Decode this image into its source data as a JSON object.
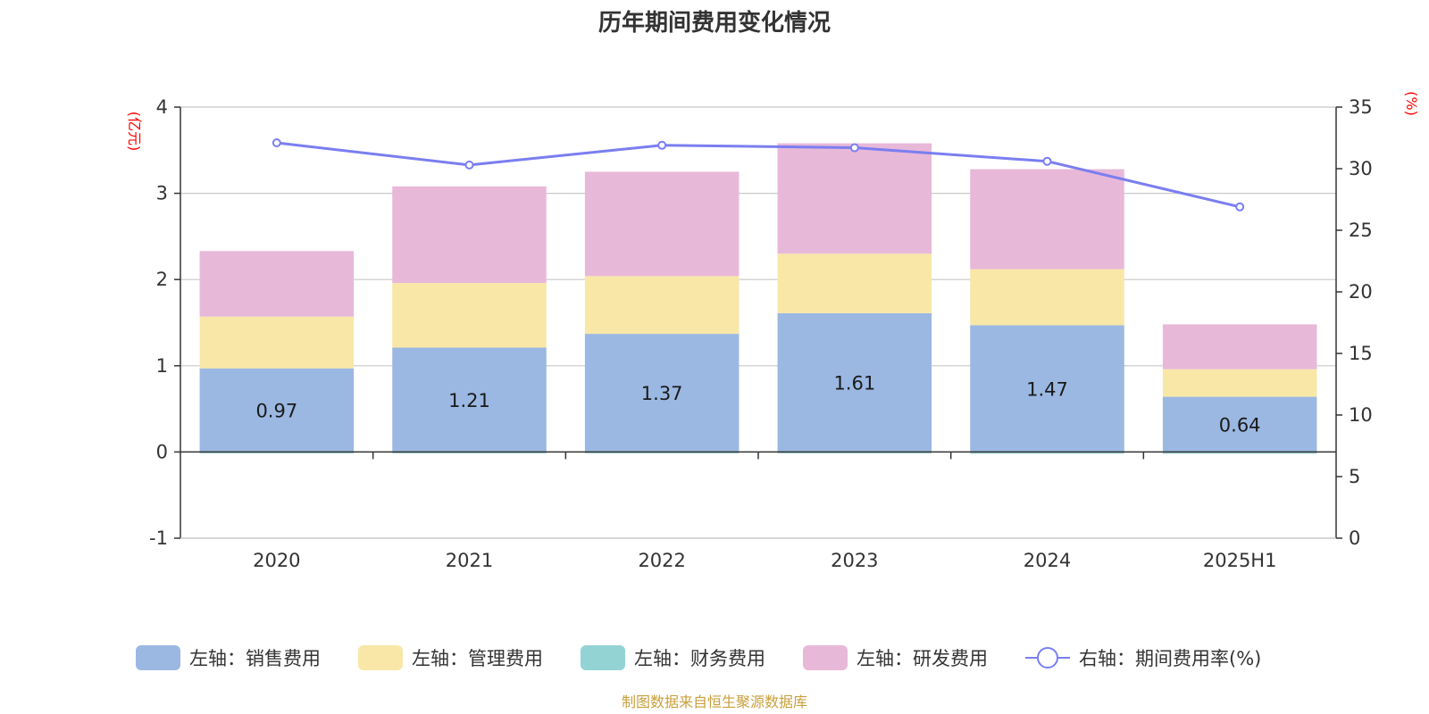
{
  "chart_data": {
    "type": "bar",
    "title": "历年期间费用变化情况",
    "categories": [
      "2020",
      "2021",
      "2022",
      "2023",
      "2024",
      "2025H1"
    ],
    "left_axis": {
      "unit": "(亿元)",
      "ylim": [
        -1,
        4
      ],
      "ticks": [
        "-1",
        "0",
        "1",
        "2",
        "3",
        "4"
      ]
    },
    "right_axis": {
      "unit": "(%)",
      "ylim": [
        0,
        35
      ],
      "ticks": [
        "0",
        "5",
        "10",
        "15",
        "20",
        "25",
        "30",
        "35"
      ]
    },
    "series": [
      {
        "name": "左轴：销售费用",
        "kind": "bar",
        "axis": "left",
        "color": "#9bb8e2",
        "values": [
          0.97,
          1.21,
          1.37,
          1.61,
          1.47,
          0.64
        ],
        "labels": [
          "0.97",
          "1.21",
          "1.37",
          "1.61",
          "1.47",
          "0.64"
        ]
      },
      {
        "name": "左轴：管理费用",
        "kind": "bar",
        "axis": "left",
        "color": "#f8e7a7",
        "values": [
          0.6,
          0.75,
          0.67,
          0.69,
          0.65,
          0.32
        ]
      },
      {
        "name": "左轴：财务费用",
        "kind": "bar",
        "axis": "left",
        "color": "#94d3d3",
        "values": [
          -0.01,
          -0.01,
          -0.01,
          -0.01,
          -0.02,
          -0.02
        ]
      },
      {
        "name": "左轴：研发费用",
        "kind": "bar",
        "axis": "left",
        "color": "#e8b8d9",
        "values": [
          0.76,
          1.12,
          1.21,
          1.28,
          1.16,
          0.52
        ]
      },
      {
        "name": "右轴：期间费用率(%)",
        "kind": "line",
        "axis": "right",
        "color": "#7a7ef0",
        "values": [
          32.1,
          30.3,
          31.9,
          31.7,
          30.6,
          26.9
        ]
      }
    ],
    "grid": true,
    "legend_position": "bottom",
    "source": "制图数据来自恒生聚源数据库"
  }
}
